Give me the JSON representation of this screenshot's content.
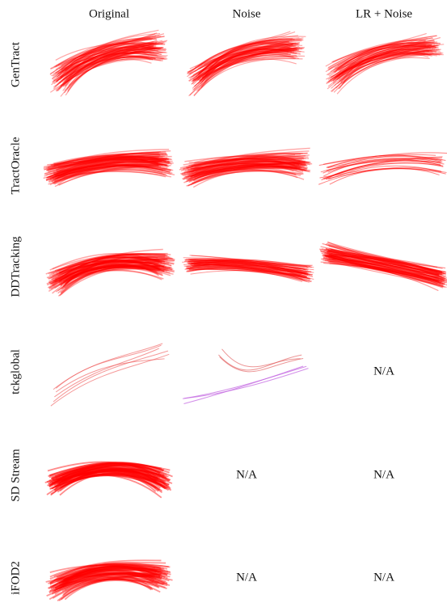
{
  "columns": [
    "Original",
    "Noise",
    "LR + Noise"
  ],
  "rows": [
    {
      "label": "GenTract"
    },
    {
      "label": "TractOracle"
    },
    {
      "label": "DDTracking"
    },
    {
      "label": "tckglobal",
      "lr_noise": "N/A"
    },
    {
      "label": "SD Stream",
      "noise": "N/A",
      "lr_noise": "N/A"
    },
    {
      "label": "iFOD2",
      "noise": "N/A",
      "lr_noise": "N/A"
    }
  ]
}
